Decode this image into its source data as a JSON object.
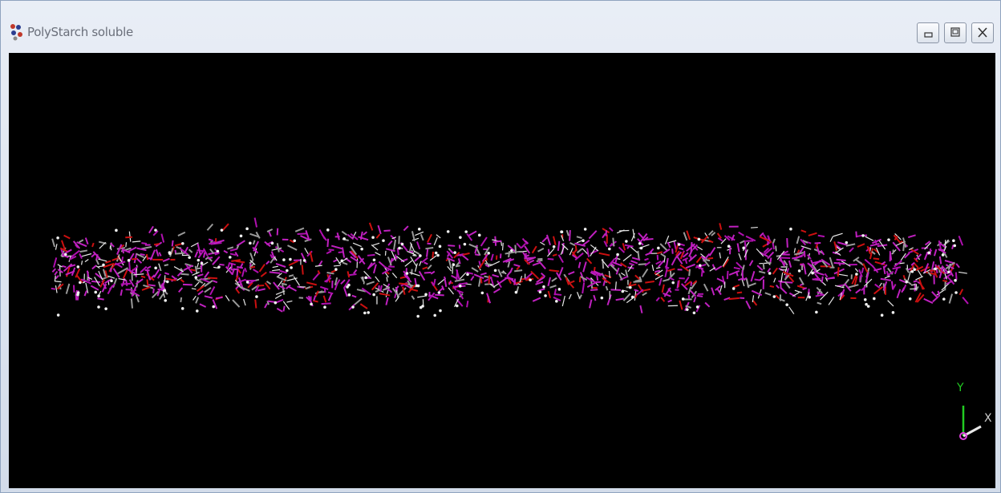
{
  "window": {
    "title": "PolyStarch soluble"
  },
  "viewer": {
    "axes": {
      "y_label": "Y",
      "x_label": "X"
    }
  }
}
